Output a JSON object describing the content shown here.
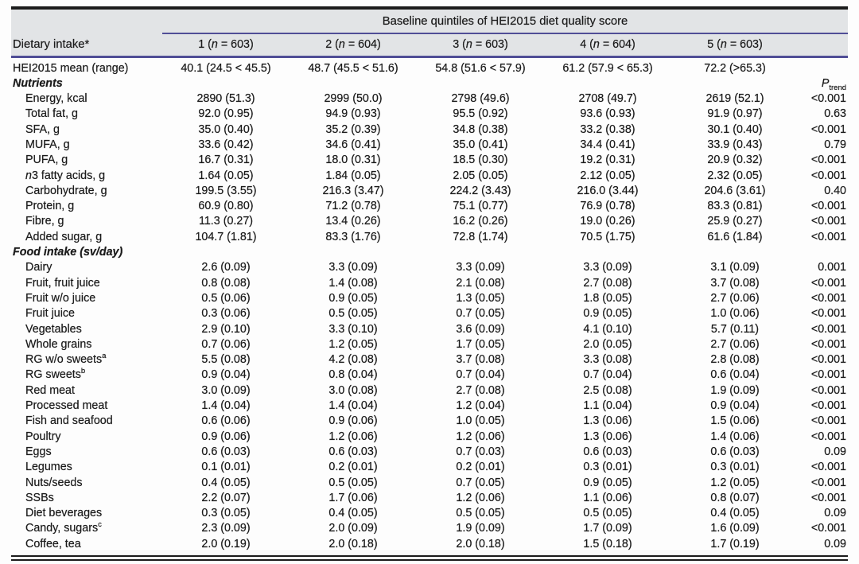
{
  "colors": {
    "rule_purple": "#504e96",
    "header_bg": "#e2e4e6",
    "rule_black": "#1c1c1c",
    "text": "#1b1b1b"
  },
  "table": {
    "spanner_title": "Baseline quintiles of HEI2015 diet quality score",
    "stub_header": "Dietary intake*",
    "n_symbol": "n",
    "quintile_headers": [
      {
        "quintile": "1",
        "n": "603"
      },
      {
        "quintile": "2",
        "n": "604"
      },
      {
        "quintile": "3",
        "n": "603"
      },
      {
        "quintile": "4",
        "n": "604"
      },
      {
        "quintile": "5",
        "n": "603"
      }
    ],
    "p_trend_label": {
      "main": "P",
      "sub": "trend"
    },
    "rows": [
      {
        "type": "data",
        "label": "HEI2015 mean (range)",
        "indent": false,
        "values": [
          "40.1 (24.5 < 45.5)",
          "48.7 (45.5 < 51.6)",
          "54.8 (51.6 < 57.9)",
          "61.2 (57.9 < 65.3)",
          "72.2 (>65.3)"
        ],
        "p": ""
      },
      {
        "type": "section",
        "label": "Nutrients",
        "p_header": true
      },
      {
        "type": "data",
        "label": "Energy, kcal",
        "indent": true,
        "values": [
          "2890 (51.3)",
          "2999 (50.0)",
          "2798 (49.6)",
          "2708 (49.7)",
          "2619 (52.1)"
        ],
        "p": "<0.001"
      },
      {
        "type": "data",
        "label": "Total fat, g",
        "indent": true,
        "values": [
          "92.0 (0.95)",
          "94.9 (0.93)",
          "95.5 (0.92)",
          "93.6 (0.93)",
          "91.9 (0.97)"
        ],
        "p": "0.63"
      },
      {
        "type": "data",
        "label": "SFA, g",
        "indent": true,
        "values": [
          "35.0 (0.40)",
          "35.2 (0.39)",
          "34.8 (0.38)",
          "33.2 (0.38)",
          "30.1 (0.40)"
        ],
        "p": "<0.001"
      },
      {
        "type": "data",
        "label": "MUFA, g",
        "indent": true,
        "values": [
          "33.6 (0.42)",
          "34.6 (0.41)",
          "35.0 (0.41)",
          "34.4 (0.41)",
          "33.9 (0.43)"
        ],
        "p": "0.79"
      },
      {
        "type": "data",
        "label": "PUFA, g",
        "indent": true,
        "values": [
          "16.7 (0.31)",
          "18.0 (0.31)",
          "18.5 (0.30)",
          "19.2 (0.31)",
          "20.9 (0.32)"
        ],
        "p": "<0.001"
      },
      {
        "type": "data",
        "label": "3 fatty acids, g",
        "label_italic_prefix": "n",
        "indent": true,
        "values": [
          "1.64 (0.05)",
          "1.84 (0.05)",
          "2.05 (0.05)",
          "2.12 (0.05)",
          "2.32 (0.05)"
        ],
        "p": "<0.001"
      },
      {
        "type": "data",
        "label": "Carbohydrate, g",
        "indent": true,
        "values": [
          "199.5 (3.55)",
          "216.3 (3.47)",
          "224.2 (3.43)",
          "216.0 (3.44)",
          "204.6 (3.61)"
        ],
        "p": "0.40"
      },
      {
        "type": "data",
        "label": "Protein, g",
        "indent": true,
        "values": [
          "60.9 (0.80)",
          "71.2 (0.78)",
          "75.1 (0.77)",
          "76.9 (0.78)",
          "83.3 (0.81)"
        ],
        "p": "<0.001"
      },
      {
        "type": "data",
        "label": "Fibre, g",
        "indent": true,
        "values": [
          "11.3 (0.27)",
          "13.4 (0.26)",
          "16.2 (0.26)",
          "19.0 (0.26)",
          "25.9 (0.27)"
        ],
        "p": "<0.001"
      },
      {
        "type": "data",
        "label": "Added sugar, g",
        "indent": true,
        "values": [
          "104.7 (1.81)",
          "83.3 (1.76)",
          "72.8 (1.74)",
          "70.5 (1.75)",
          "61.6 (1.84)"
        ],
        "p": "<0.001"
      },
      {
        "type": "section",
        "label": "Food intake (sv/day)",
        "p_header": false
      },
      {
        "type": "data",
        "label": "Dairy",
        "indent": true,
        "values": [
          "2.6 (0.09)",
          "3.3 (0.09)",
          "3.3 (0.09)",
          "3.3 (0.09)",
          "3.1 (0.09)"
        ],
        "p": "0.001"
      },
      {
        "type": "data",
        "label": "Fruit, fruit juice",
        "indent": true,
        "values": [
          "0.8 (0.08)",
          "1.4 (0.08)",
          "2.1 (0.08)",
          "2.7 (0.08)",
          "3.7 (0.08)"
        ],
        "p": "<0.001"
      },
      {
        "type": "data",
        "label": "Fruit w/o juice",
        "indent": true,
        "values": [
          "0.5 (0.06)",
          "0.9 (0.05)",
          "1.3 (0.05)",
          "1.8 (0.05)",
          "2.7 (0.06)"
        ],
        "p": "<0.001"
      },
      {
        "type": "data",
        "label": "Fruit juice",
        "indent": true,
        "values": [
          "0.3 (0.06)",
          "0.5 (0.05)",
          "0.7 (0.05)",
          "0.9 (0.05)",
          "1.0 (0.06)"
        ],
        "p": "<0.001"
      },
      {
        "type": "data",
        "label": "Vegetables",
        "indent": true,
        "values": [
          "2.9 (0.10)",
          "3.3 (0.10)",
          "3.6 (0.09)",
          "4.1 (0.10)",
          "5.7 (0.11)"
        ],
        "p": "<0.001"
      },
      {
        "type": "data",
        "label": "Whole grains",
        "indent": true,
        "values": [
          "0.7 (0.06)",
          "1.2 (0.05)",
          "1.7 (0.05)",
          "2.0 (0.05)",
          "2.7 (0.06)"
        ],
        "p": "<0.001"
      },
      {
        "type": "data",
        "label": "RG w/o sweets",
        "sup": "a",
        "indent": true,
        "values": [
          "5.5 (0.08)",
          "4.2 (0.08)",
          "3.7 (0.08)",
          "3.3 (0.08)",
          "2.8 (0.08)"
        ],
        "p": "<0.001"
      },
      {
        "type": "data",
        "label": "RG sweets",
        "sup": "b",
        "indent": true,
        "values": [
          "0.9 (0.04)",
          "0.8 (0.04)",
          "0.7 (0.04)",
          "0.7 (0.04)",
          "0.6 (0.04)"
        ],
        "p": "<0.001"
      },
      {
        "type": "data",
        "label": "Red meat",
        "indent": true,
        "values": [
          "3.0 (0.09)",
          "3.0 (0.08)",
          "2.7 (0.08)",
          "2.5 (0.08)",
          "1.9 (0.09)"
        ],
        "p": "<0.001"
      },
      {
        "type": "data",
        "label": "Processed meat",
        "indent": true,
        "values": [
          "1.4 (0.04)",
          "1.4 (0.04)",
          "1.2 (0.04)",
          "1.1 (0.04)",
          "0.9 (0.04)"
        ],
        "p": "<0.001"
      },
      {
        "type": "data",
        "label": "Fish and seafood",
        "indent": true,
        "values": [
          "0.6 (0.06)",
          "0.9 (0.06)",
          "1.0 (0.05)",
          "1.3 (0.06)",
          "1.5 (0.06)"
        ],
        "p": "<0.001"
      },
      {
        "type": "data",
        "label": "Poultry",
        "indent": true,
        "values": [
          "0.9 (0.06)",
          "1.2 (0.06)",
          "1.2 (0.06)",
          "1.3 (0.06)",
          "1.4 (0.06)"
        ],
        "p": "<0.001"
      },
      {
        "type": "data",
        "label": "Eggs",
        "indent": true,
        "values": [
          "0.6 (0.03)",
          "0.6 (0.03)",
          "0.7 (0.03)",
          "0.6 (0.03)",
          "0.6 (0.03)"
        ],
        "p": "0.09"
      },
      {
        "type": "data",
        "label": "Legumes",
        "indent": true,
        "values": [
          "0.1 (0.01)",
          "0.2 (0.01)",
          "0.2 (0.01)",
          "0.3 (0.01)",
          "0.3 (0.01)"
        ],
        "p": "<0.001"
      },
      {
        "type": "data",
        "label": "Nuts/seeds",
        "indent": true,
        "values": [
          "0.4 (0.05)",
          "0.5 (0.05)",
          "0.7 (0.05)",
          "0.9 (0.05)",
          "1.2 (0.05)"
        ],
        "p": "<0.001"
      },
      {
        "type": "data",
        "label": "SSBs",
        "indent": true,
        "values": [
          "2.2 (0.07)",
          "1.7 (0.06)",
          "1.2 (0.06)",
          "1.1 (0.06)",
          "0.8 (0.07)"
        ],
        "p": "<0.001"
      },
      {
        "type": "data",
        "label": "Diet beverages",
        "indent": true,
        "values": [
          "0.3 (0.05)",
          "0.4 (0.05)",
          "0.5 (0.05)",
          "0.5 (0.05)",
          "0.4 (0.05)"
        ],
        "p": "0.09"
      },
      {
        "type": "data",
        "label": "Candy, sugars",
        "sup": "c",
        "indent": true,
        "values": [
          "2.3 (0.09)",
          "2.0 (0.09)",
          "1.9 (0.09)",
          "1.7 (0.09)",
          "1.6 (0.09)"
        ],
        "p": "<0.001"
      },
      {
        "type": "data",
        "label": "Coffee, tea",
        "indent": true,
        "values": [
          "2.0 (0.19)",
          "2.0 (0.18)",
          "2.0 (0.18)",
          "1.5 (0.18)",
          "1.7 (0.19)"
        ],
        "p": "0.09"
      }
    ]
  }
}
